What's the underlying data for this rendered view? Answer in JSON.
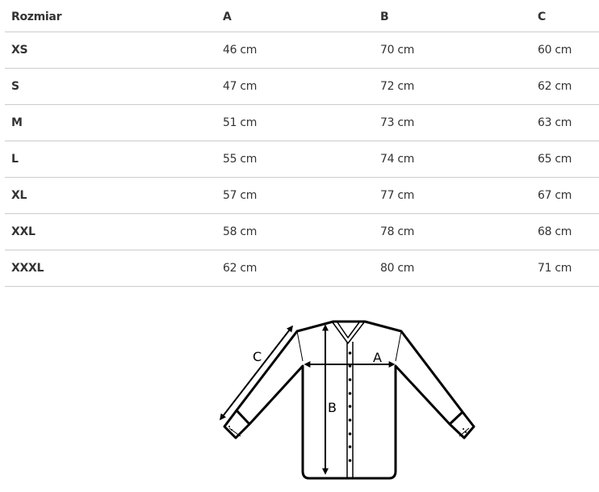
{
  "table": {
    "headers": [
      "Rozmiar",
      "A",
      "B",
      "C"
    ],
    "rows": [
      [
        "XS",
        "46 cm",
        "70 cm",
        "60 cm"
      ],
      [
        "S",
        "47 cm",
        "72 cm",
        "62 cm"
      ],
      [
        "M",
        "51 cm",
        "73 cm",
        "63 cm"
      ],
      [
        "L",
        "55 cm",
        "74 cm",
        "65 cm"
      ],
      [
        "XL",
        "57 cm",
        "77 cm",
        "67 cm"
      ],
      [
        "XXL",
        "58 cm",
        "78 cm",
        "68 cm"
      ],
      [
        "XXXL",
        "62 cm",
        "80 cm",
        "71 cm"
      ]
    ]
  },
  "diagram": {
    "label_a": "A",
    "label_b": "B",
    "label_c": "C"
  }
}
